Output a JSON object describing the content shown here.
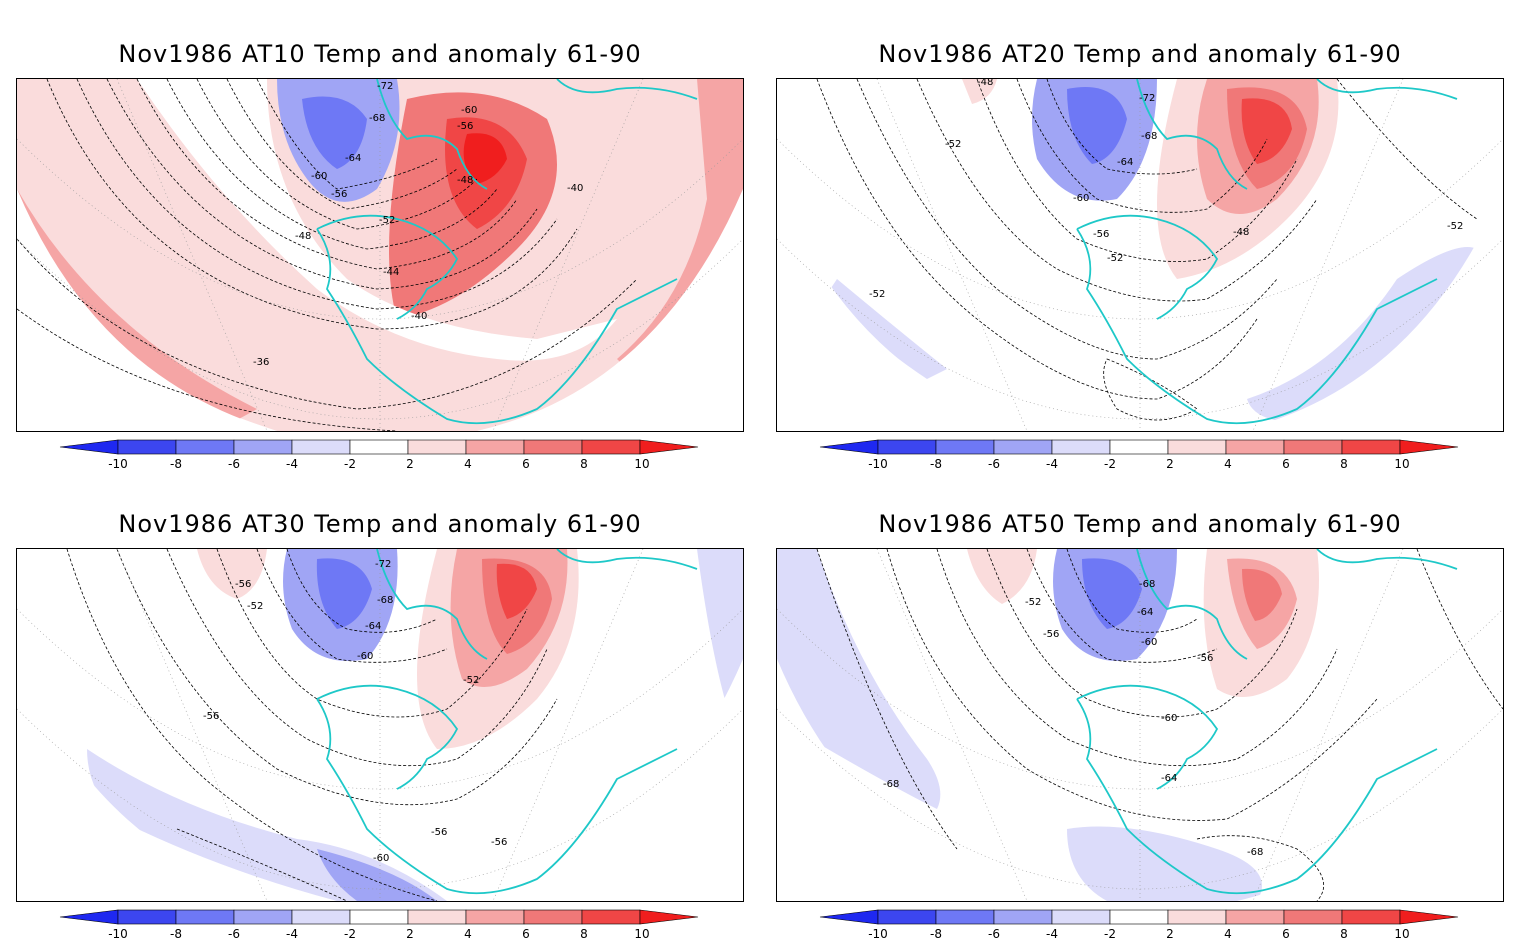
{
  "panels": [
    {
      "title": "Nov1986 AT10 Temp and anomaly 61-90",
      "contour_labels": [
        "-72",
        "-68",
        "-64",
        "-60",
        "-56",
        "-52",
        "-48",
        "-44",
        "-40",
        "-36",
        "-60",
        "-56",
        "-48",
        "-40"
      ]
    },
    {
      "title": "Nov1986 AT20 Temp and anomaly 61-90",
      "contour_labels": [
        "-48",
        "-72",
        "-68",
        "-64",
        "-60",
        "-56",
        "-52",
        "-52",
        "-52",
        "-52",
        "-48"
      ]
    },
    {
      "title": "Nov1986 AT30 Temp and anomaly 61-90",
      "contour_labels": [
        "-72",
        "-68",
        "-64",
        "-60",
        "-56",
        "-52",
        "-56",
        "-52",
        "-56",
        "-56",
        "-60"
      ]
    },
    {
      "title": "Nov1986 AT50 Temp and anomaly 61-90",
      "contour_labels": [
        "-68",
        "-64",
        "-60",
        "-56",
        "-52",
        "-56",
        "-60",
        "-64",
        "-68",
        "-68"
      ]
    }
  ],
  "colorbar": {
    "tick_labels": [
      "-10",
      "-8",
      "-6",
      "-4",
      "-2",
      "2",
      "4",
      "6",
      "8",
      "10"
    ],
    "colors": [
      "#1e28f0",
      "#3c46f0",
      "#6e78f5",
      "#a0a5f5",
      "#dcdcfa",
      "#ffffff",
      "#fadcdc",
      "#f5a5a5",
      "#f07878",
      "#f04646",
      "#f01e1e"
    ]
  },
  "colors": {
    "coastline": "#1ec8c8",
    "contour": "#000000"
  }
}
